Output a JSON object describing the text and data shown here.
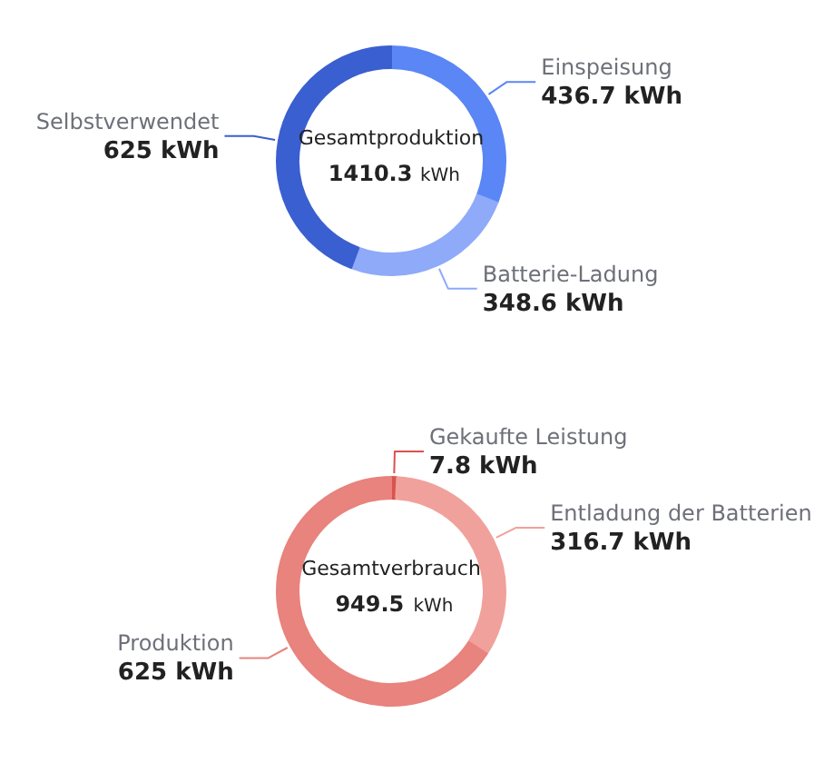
{
  "chart_data": [
    {
      "type": "donut",
      "title": "Gesamtproduktion",
      "subtitle": "1410.3 kWh",
      "categories": [
        "Einspeisung",
        "Batterie-Ladung",
        "Selbstverwendet"
      ],
      "values": [
        436.7,
        348.6,
        625
      ],
      "colors": [
        "#5b86f5",
        "#8faaf8",
        "#3a5fd0"
      ],
      "value_labels": [
        "436.7 kWh",
        "348.6 kWh",
        "625 kWh"
      ]
    },
    {
      "type": "donut",
      "title": "Gesamtverbrauch",
      "subtitle": "949.5 kWh",
      "categories": [
        "Gekaufte Leistung",
        "Entladung der Batterien",
        "Produktion"
      ],
      "values": [
        7.8,
        316.7,
        625
      ],
      "colors": [
        "#d9534f",
        "#f1a19b",
        "#e8837d"
      ],
      "value_labels": [
        "7.8 kWh",
        "316.7 kWh",
        "625 kWh"
      ]
    }
  ]
}
